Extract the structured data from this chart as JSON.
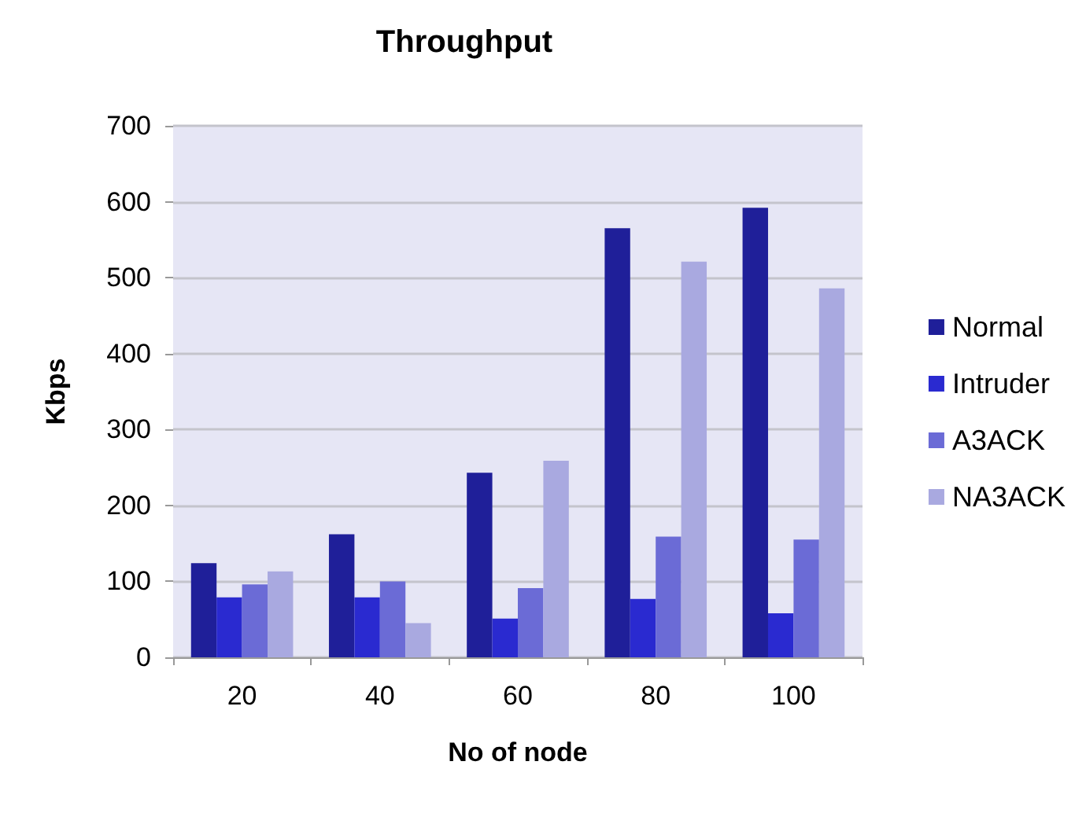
{
  "chart_data": {
    "type": "bar",
    "title": "Throughput",
    "xlabel": "No of node",
    "ylabel": "Kbps",
    "categories": [
      "20",
      "40",
      "60",
      "80",
      "100"
    ],
    "series": [
      {
        "name": "Normal",
        "color": "#1f1f99",
        "values": [
          124,
          162,
          243,
          565,
          592
        ]
      },
      {
        "name": "Intruder",
        "color": "#2a2ad0",
        "values": [
          79,
          79,
          51,
          77,
          58
        ]
      },
      {
        "name": "A3ACK",
        "color": "#6b6bd6",
        "values": [
          96,
          100,
          91,
          159,
          155
        ]
      },
      {
        "name": "NA3ACK",
        "color": "#a9a9e0",
        "values": [
          113,
          45,
          259,
          521,
          486
        ]
      }
    ],
    "ylim": [
      0,
      700
    ],
    "yticks": [
      0,
      100,
      200,
      300,
      400,
      500,
      600,
      700
    ],
    "grid": "y",
    "legend": "right"
  }
}
